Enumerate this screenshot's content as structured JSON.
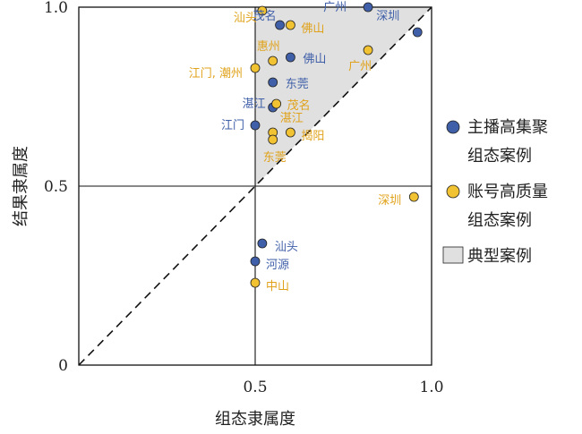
{
  "chart_data": {
    "type": "scatter",
    "xlabel": "组态隶属度",
    "ylabel": "结果隶属度",
    "xlim": [
      0,
      1
    ],
    "ylim": [
      0,
      1
    ],
    "x_ticks": [
      {
        "value": 0.5,
        "label": "0.5"
      },
      {
        "value": 1.0,
        "label": "1.0"
      }
    ],
    "y_ticks": [
      {
        "value": 0,
        "label": "0"
      },
      {
        "value": 0.5,
        "label": "0.5"
      },
      {
        "value": 1.0,
        "label": "1.0"
      }
    ],
    "reference_lines": [
      "x = 0.5",
      "y = 0.5",
      "y = x"
    ],
    "shaded_region": {
      "label": "典型案例",
      "polygon": [
        [
          0.5,
          0.5
        ],
        [
          0.5,
          1.0
        ],
        [
          1.0,
          1.0
        ]
      ],
      "color": "#e0e0e0"
    },
    "legend": {
      "position": "right"
    },
    "series": [
      {
        "name": "主播高集聚组态案例",
        "color": "#3f5fa8",
        "label_color": "#3f5fa8",
        "points": [
          {
            "label": "茂名",
            "x": 0.57,
            "y": 0.95
          },
          {
            "label": "广州",
            "x": 0.82,
            "y": 1.0
          },
          {
            "label": "深圳",
            "x": 0.96,
            "y": 0.93
          },
          {
            "label": "佛山",
            "x": 0.6,
            "y": 0.86
          },
          {
            "label": "东莞",
            "x": 0.55,
            "y": 0.79
          },
          {
            "label": "湛江",
            "x": 0.55,
            "y": 0.72
          },
          {
            "label": "江门",
            "x": 0.5,
            "y": 0.67
          },
          {
            "label": "汕头",
            "x": 0.52,
            "y": 0.34
          },
          {
            "label": "河源",
            "x": 0.5,
            "y": 0.29
          }
        ]
      },
      {
        "name": "账号高质量组态案例",
        "color": "#f1c232",
        "label_color": "#e0a21a",
        "points": [
          {
            "label": "汕头",
            "x": 0.52,
            "y": 0.99
          },
          {
            "label": "佛山",
            "x": 0.6,
            "y": 0.95
          },
          {
            "label": "惠州",
            "x": 0.55,
            "y": 0.85
          },
          {
            "label": "江门, 潮州",
            "x": 0.5,
            "y": 0.83
          },
          {
            "label": "广州",
            "x": 0.82,
            "y": 0.88
          },
          {
            "label": "茂名",
            "x": 0.56,
            "y": 0.73
          },
          {
            "label": "湛江",
            "x": 0.55,
            "y": 0.65
          },
          {
            "label": "揭阳",
            "x": 0.6,
            "y": 0.65
          },
          {
            "label": "东莞",
            "x": 0.55,
            "y": 0.63
          },
          {
            "label": "深圳",
            "x": 0.95,
            "y": 0.47
          },
          {
            "label": "中山",
            "x": 0.5,
            "y": 0.23
          }
        ]
      }
    ]
  },
  "legend_items": [
    {
      "type": "marker",
      "series": 0,
      "lines": [
        "主播高集聚",
        "组态案例"
      ]
    },
    {
      "type": "marker",
      "series": 1,
      "lines": [
        "账号高质量",
        "组态案例"
      ]
    },
    {
      "type": "region",
      "lines": [
        "典型案例"
      ]
    }
  ]
}
